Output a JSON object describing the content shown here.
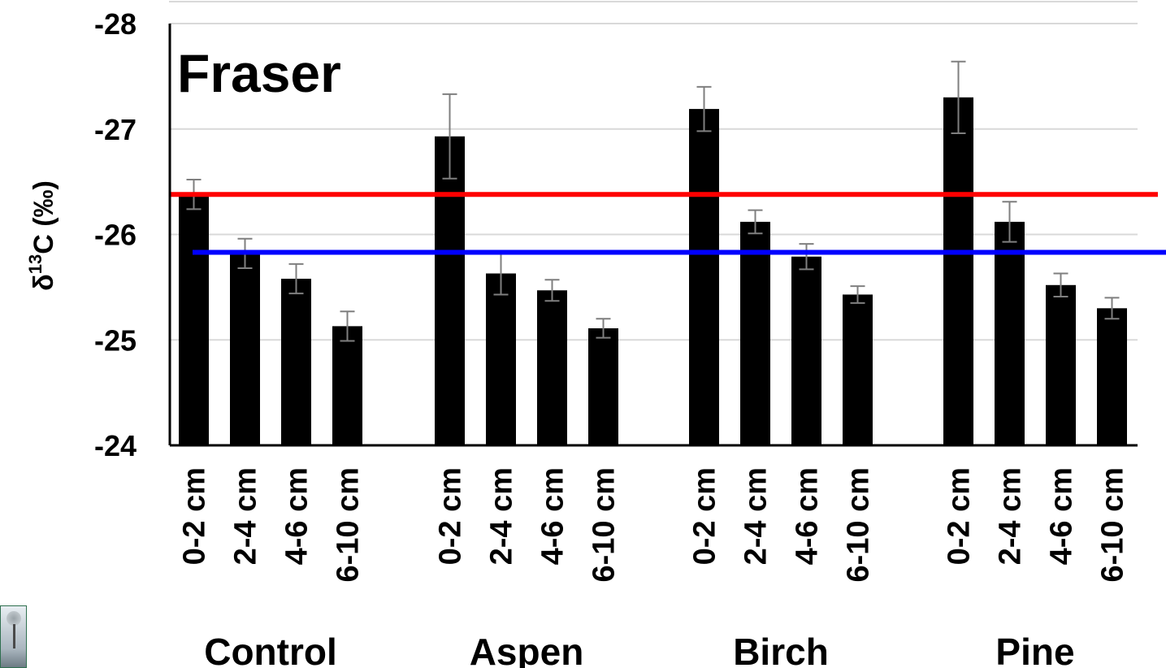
{
  "chart_data": {
    "type": "bar",
    "title": "Fraser",
    "ylabel_main": "δ",
    "ylabel_sup": "13",
    "ylabel_rest": "C (‰)",
    "y_inverted": true,
    "ylim": [
      -24,
      -28
    ],
    "yticks": [
      "-28",
      "-27",
      "-26",
      "-25",
      "-24"
    ],
    "ytick_values": [
      -28,
      -27,
      -26,
      -25,
      -24
    ],
    "grid": true,
    "groups": [
      "Control",
      "Aspen",
      "Birch",
      "Pine"
    ],
    "categories": [
      "0-2 cm",
      "2-4 cm",
      "4-6 cm",
      "6-10 cm"
    ],
    "series": [
      {
        "group": "Control",
        "values": [
          -26.38,
          -25.82,
          -25.58,
          -25.13
        ],
        "errors": [
          0.14,
          0.14,
          0.14,
          0.14
        ]
      },
      {
        "group": "Aspen",
        "values": [
          -26.93,
          -25.63,
          -25.47,
          -25.11
        ],
        "errors": [
          0.4,
          0.2,
          0.1,
          0.09
        ]
      },
      {
        "group": "Birch",
        "values": [
          -27.19,
          -26.12,
          -25.79,
          -25.43
        ],
        "errors": [
          0.21,
          0.11,
          0.12,
          0.08
        ]
      },
      {
        "group": "Pine",
        "values": [
          -27.3,
          -26.12,
          -25.52,
          -25.3
        ],
        "errors": [
          0.34,
          0.19,
          0.11,
          0.1
        ]
      }
    ],
    "reference_lines": [
      {
        "color": "#ff0000",
        "value": -26.38
      },
      {
        "color": "#0000ff",
        "value": -25.83
      }
    ],
    "bar_color": "#000000",
    "error_color": "#7f7f7f",
    "grid_color": "#d9d9d9"
  }
}
